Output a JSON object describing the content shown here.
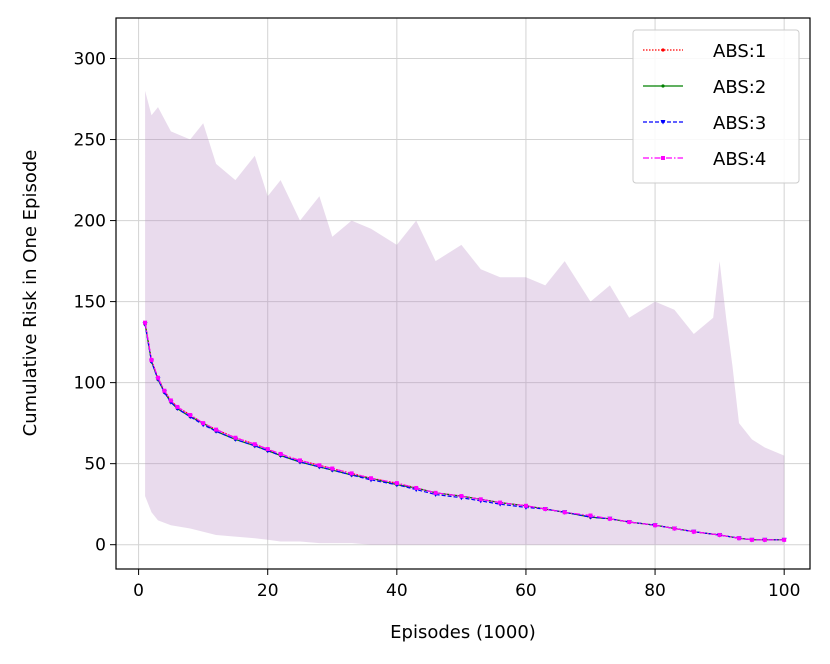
{
  "chart_data": {
    "type": "line",
    "title": "",
    "xlabel": "Episodes (1000)",
    "ylabel": "Cumulative Risk in One Episode",
    "xlim": [
      -3.5,
      104
    ],
    "ylim": [
      -15,
      325
    ],
    "xticks": [
      0,
      20,
      40,
      60,
      80,
      100
    ],
    "yticks": [
      0,
      50,
      100,
      150,
      200,
      250,
      300
    ],
    "grid": true,
    "legend_position": "upper right",
    "x": [
      1,
      2,
      3,
      4,
      5,
      6,
      8,
      10,
      12,
      15,
      18,
      20,
      22,
      25,
      28,
      30,
      33,
      36,
      40,
      43,
      46,
      50,
      53,
      56,
      60,
      63,
      66,
      70,
      73,
      76,
      80,
      83,
      86,
      90,
      93,
      95,
      97,
      100
    ],
    "series": [
      {
        "name": "ABS:1",
        "color": "#ff0000",
        "style": "dotted",
        "marker": "point",
        "values": [
          137,
          114,
          103,
          95,
          89,
          85,
          80,
          75,
          71,
          66,
          62,
          59,
          55,
          52,
          49,
          47,
          44,
          41,
          38,
          35,
          32,
          30,
          28,
          26,
          24,
          22,
          20,
          17,
          16,
          14,
          12,
          10,
          8,
          6,
          4,
          3,
          3,
          3
        ]
      },
      {
        "name": "ABS:2",
        "color": "#008000",
        "style": "solid",
        "marker": "point",
        "values": [
          136,
          113,
          102,
          94,
          88,
          84,
          79,
          75,
          70,
          65,
          61,
          58,
          55,
          51,
          48,
          46,
          43,
          41,
          37,
          35,
          32,
          30,
          28,
          26,
          24,
          22,
          20,
          17,
          16,
          14,
          12,
          10,
          8,
          6,
          4,
          3,
          3,
          3
        ]
      },
      {
        "name": "ABS:3",
        "color": "#0000ff",
        "style": "dashed",
        "marker": "triangle",
        "values": [
          136,
          113,
          102,
          94,
          88,
          84,
          79,
          74,
          70,
          65,
          61,
          58,
          55,
          51,
          48,
          46,
          43,
          40,
          37,
          34,
          31,
          29,
          27,
          25,
          23,
          22,
          20,
          17,
          16,
          14,
          12,
          10,
          8,
          6,
          4,
          3,
          3,
          3
        ]
      },
      {
        "name": "ABS:4",
        "color": "#ff00ff",
        "style": "dashdot",
        "marker": "x",
        "values": [
          137,
          114,
          103,
          95,
          89,
          85,
          80,
          75,
          71,
          66,
          62,
          59,
          56,
          52,
          49,
          47,
          44,
          41,
          38,
          35,
          32,
          30,
          28,
          26,
          24,
          22,
          20,
          18,
          16,
          14,
          12,
          10,
          8,
          6,
          4,
          3,
          3,
          3
        ]
      }
    ],
    "band": {
      "color": "#b07cc0",
      "x": [
        1,
        2,
        3,
        5,
        8,
        10,
        12,
        15,
        18,
        20,
        22,
        25,
        28,
        30,
        33,
        36,
        40,
        43,
        46,
        50,
        53,
        56,
        60,
        63,
        66,
        70,
        73,
        76,
        80,
        83,
        86,
        89,
        90,
        91,
        92,
        93,
        95,
        97,
        100
      ],
      "upper": [
        280,
        265,
        270,
        255,
        250,
        260,
        235,
        225,
        240,
        215,
        225,
        200,
        215,
        190,
        200,
        195,
        185,
        200,
        175,
        185,
        170,
        165,
        165,
        160,
        175,
        150,
        160,
        140,
        150,
        145,
        130,
        140,
        175,
        140,
        110,
        75,
        65,
        60,
        55
      ],
      "lower": [
        30,
        20,
        15,
        12,
        10,
        8,
        6,
        5,
        4,
        3,
        2,
        2,
        1,
        1,
        1,
        0,
        0,
        0,
        0,
        0,
        0,
        0,
        0,
        0,
        0,
        0,
        0,
        0,
        0,
        0,
        0,
        0,
        0,
        0,
        0,
        0,
        0,
        0,
        0
      ]
    }
  }
}
